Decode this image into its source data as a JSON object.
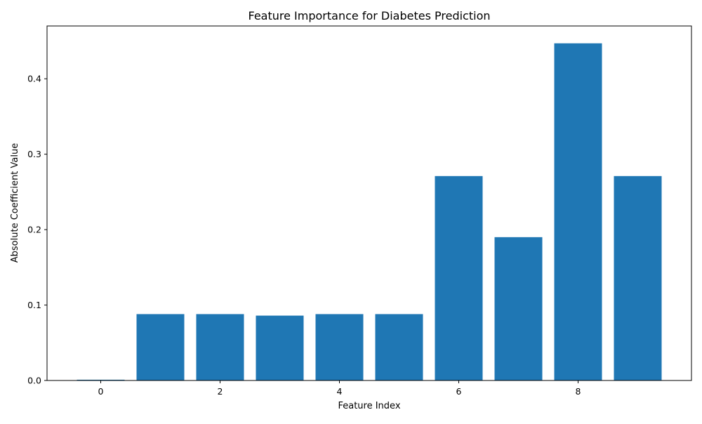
{
  "chart_data": {
    "type": "bar",
    "title": "Feature Importance for Diabetes Prediction",
    "xlabel": "Feature Index",
    "ylabel": "Absolute Coefficient Value",
    "categories": [
      0,
      1,
      2,
      3,
      4,
      5,
      6,
      7,
      8,
      9
    ],
    "values": [
      0.001,
      0.088,
      0.088,
      0.086,
      0.088,
      0.088,
      0.271,
      0.19,
      0.447,
      0.271
    ],
    "xlim": [
      -0.9,
      9.9
    ],
    "ylim": [
      0,
      0.47
    ],
    "xticks": [
      0,
      2,
      4,
      6,
      8
    ],
    "yticks": [
      0.0,
      0.1,
      0.2,
      0.3,
      0.4
    ],
    "xtick_labels": [
      "0",
      "2",
      "4",
      "6",
      "8"
    ],
    "ytick_labels": [
      "0.0",
      "0.1",
      "0.2",
      "0.3",
      "0.4"
    ],
    "bar_color": "#1f77b4",
    "grid": false,
    "legend": "none"
  }
}
